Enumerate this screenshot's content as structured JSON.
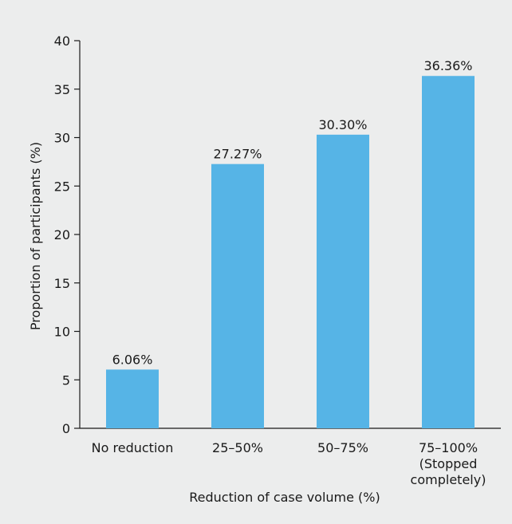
{
  "chart_data": {
    "type": "bar",
    "title": "",
    "xlabel": "Reduction of case volume (%)",
    "ylabel": "Proportion of participants (%)",
    "ylim": [
      0,
      40
    ],
    "yticks": [
      0,
      5,
      10,
      15,
      20,
      25,
      30,
      35,
      40
    ],
    "grid": false,
    "categories": [
      [
        "No reduction"
      ],
      [
        "25–50%"
      ],
      [
        "50–75%"
      ],
      [
        "75–100%",
        "(Stopped",
        "completely)"
      ]
    ],
    "values": [
      6.06,
      27.27,
      30.3,
      36.36
    ],
    "data_labels": [
      "6.06%",
      "27.27%",
      "30.30%",
      "36.36%"
    ],
    "colors": {
      "bar": "#56b4e6",
      "axis": "#1a1a1a",
      "background": "#eceded"
    }
  }
}
